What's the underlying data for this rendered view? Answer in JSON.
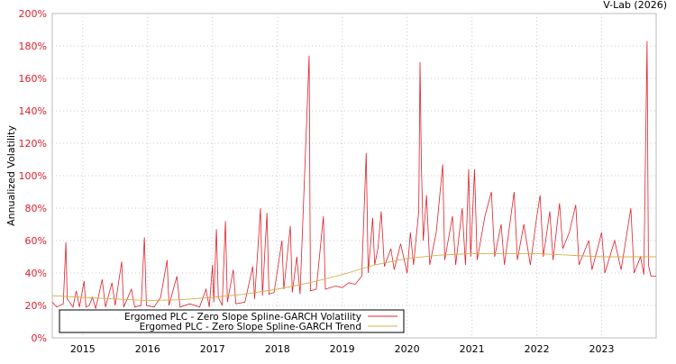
{
  "chart_data": {
    "type": "line",
    "title": "",
    "credit": "V-Lab (2026)",
    "xlabel": "",
    "ylabel": "Annualized Volatility",
    "xlim": [
      2014.53,
      2023.84
    ],
    "ylim": [
      0,
      200
    ],
    "yticks": [
      "0%",
      "20%",
      "40%",
      "60%",
      "80%",
      "100%",
      "120%",
      "140%",
      "160%",
      "180%",
      "200%"
    ],
    "xticks": [
      "2015",
      "2016",
      "2017",
      "2018",
      "2019",
      "2020",
      "2021",
      "2022",
      "2023"
    ],
    "grid": true,
    "legend": {
      "placement": "bottom-left",
      "entries": [
        "Ergomed PLC - Zero Slope Spline-GARCH Volatility",
        "Ergomed PLC - Zero Slope Spline-GARCH Trend"
      ]
    },
    "colors": {
      "volatility": "#e0202a",
      "trend": "#d4b04a",
      "axis": "#e0202a"
    },
    "series": [
      {
        "name": "Ergomed PLC - Zero Slope Spline-GARCH Volatility",
        "points": [
          [
            2014.53,
            22
          ],
          [
            2014.6,
            19
          ],
          [
            2014.7,
            21
          ],
          [
            2014.74,
            59
          ],
          [
            2014.76,
            24
          ],
          [
            2014.85,
            19
          ],
          [
            2014.9,
            29
          ],
          [
            2014.95,
            19
          ],
          [
            2015.02,
            35
          ],
          [
            2015.05,
            19
          ],
          [
            2015.1,
            20
          ],
          [
            2015.15,
            25
          ],
          [
            2015.2,
            18
          ],
          [
            2015.3,
            36
          ],
          [
            2015.35,
            19
          ],
          [
            2015.45,
            34
          ],
          [
            2015.5,
            20
          ],
          [
            2015.6,
            47
          ],
          [
            2015.63,
            19
          ],
          [
            2015.75,
            30
          ],
          [
            2015.8,
            19
          ],
          [
            2015.9,
            20
          ],
          [
            2015.95,
            62
          ],
          [
            2015.98,
            20
          ],
          [
            2016.1,
            19
          ],
          [
            2016.2,
            25
          ],
          [
            2016.3,
            48
          ],
          [
            2016.33,
            20
          ],
          [
            2016.45,
            38
          ],
          [
            2016.5,
            19
          ],
          [
            2016.65,
            21
          ],
          [
            2016.8,
            19
          ],
          [
            2016.9,
            30
          ],
          [
            2016.95,
            19
          ],
          [
            2017.0,
            45
          ],
          [
            2017.02,
            22
          ],
          [
            2017.06,
            67
          ],
          [
            2017.09,
            25
          ],
          [
            2017.15,
            20
          ],
          [
            2017.2,
            72
          ],
          [
            2017.23,
            22
          ],
          [
            2017.32,
            42
          ],
          [
            2017.36,
            21
          ],
          [
            2017.5,
            22
          ],
          [
            2017.62,
            44
          ],
          [
            2017.65,
            24
          ],
          [
            2017.74,
            80
          ],
          [
            2017.77,
            26
          ],
          [
            2017.84,
            77
          ],
          [
            2017.87,
            27
          ],
          [
            2017.95,
            28
          ],
          [
            2018.07,
            60
          ],
          [
            2018.1,
            30
          ],
          [
            2018.2,
            69
          ],
          [
            2018.23,
            28
          ],
          [
            2018.3,
            50
          ],
          [
            2018.35,
            27
          ],
          [
            2018.49,
            174
          ],
          [
            2018.51,
            29
          ],
          [
            2018.6,
            30
          ],
          [
            2018.71,
            75
          ],
          [
            2018.74,
            30
          ],
          [
            2018.9,
            32
          ],
          [
            2019.0,
            31
          ],
          [
            2019.1,
            34
          ],
          [
            2019.2,
            33
          ],
          [
            2019.3,
            38
          ],
          [
            2019.37,
            114
          ],
          [
            2019.4,
            40
          ],
          [
            2019.47,
            74
          ],
          [
            2019.5,
            45
          ],
          [
            2019.55,
            55
          ],
          [
            2019.6,
            78
          ],
          [
            2019.65,
            44
          ],
          [
            2019.75,
            55
          ],
          [
            2019.8,
            42
          ],
          [
            2019.9,
            58
          ],
          [
            2020.0,
            40
          ],
          [
            2020.05,
            65
          ],
          [
            2020.1,
            45
          ],
          [
            2020.18,
            78
          ],
          [
            2020.2,
            170
          ],
          [
            2020.22,
            107
          ],
          [
            2020.25,
            60
          ],
          [
            2020.3,
            88
          ],
          [
            2020.35,
            45
          ],
          [
            2020.45,
            65
          ],
          [
            2020.55,
            107
          ],
          [
            2020.58,
            48
          ],
          [
            2020.7,
            75
          ],
          [
            2020.75,
            45
          ],
          [
            2020.85,
            80
          ],
          [
            2020.9,
            45
          ],
          [
            2020.95,
            104
          ],
          [
            2020.98,
            50
          ],
          [
            2021.04,
            104
          ],
          [
            2021.08,
            48
          ],
          [
            2021.2,
            75
          ],
          [
            2021.3,
            90
          ],
          [
            2021.35,
            50
          ],
          [
            2021.45,
            70
          ],
          [
            2021.5,
            45
          ],
          [
            2021.65,
            90
          ],
          [
            2021.7,
            48
          ],
          [
            2021.8,
            70
          ],
          [
            2021.9,
            45
          ],
          [
            2022.0,
            75
          ],
          [
            2022.05,
            88
          ],
          [
            2022.1,
            50
          ],
          [
            2022.2,
            78
          ],
          [
            2022.25,
            48
          ],
          [
            2022.35,
            83
          ],
          [
            2022.4,
            55
          ],
          [
            2022.5,
            65
          ],
          [
            2022.6,
            82
          ],
          [
            2022.65,
            45
          ],
          [
            2022.8,
            60
          ],
          [
            2022.85,
            42
          ],
          [
            2023.0,
            65
          ],
          [
            2023.05,
            40
          ],
          [
            2023.2,
            60
          ],
          [
            2023.3,
            42
          ],
          [
            2023.45,
            80
          ],
          [
            2023.5,
            40
          ],
          [
            2023.6,
            50
          ],
          [
            2023.65,
            39
          ],
          [
            2023.7,
            183
          ],
          [
            2023.72,
            45
          ],
          [
            2023.76,
            38
          ],
          [
            2023.84,
            38
          ]
        ]
      },
      {
        "name": "Ergomed PLC - Zero Slope Spline-GARCH Trend",
        "points": [
          [
            2014.53,
            26
          ],
          [
            2015.0,
            25
          ],
          [
            2015.5,
            24
          ],
          [
            2016.0,
            23
          ],
          [
            2016.5,
            23.5
          ],
          [
            2017.0,
            25
          ],
          [
            2017.5,
            27
          ],
          [
            2018.0,
            30
          ],
          [
            2018.5,
            34
          ],
          [
            2019.0,
            39
          ],
          [
            2019.5,
            45
          ],
          [
            2020.0,
            49
          ],
          [
            2020.5,
            51
          ],
          [
            2021.0,
            52
          ],
          [
            2021.5,
            52
          ],
          [
            2022.0,
            52
          ],
          [
            2022.5,
            51
          ],
          [
            2023.0,
            50
          ],
          [
            2023.5,
            50
          ],
          [
            2023.84,
            50
          ]
        ]
      }
    ]
  }
}
